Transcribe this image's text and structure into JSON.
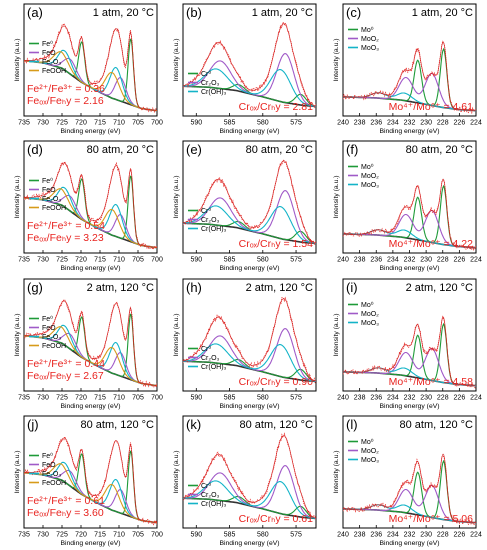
{
  "figure": {
    "panels": [
      {
        "label": "(a)",
        "element": "Fe",
        "condition": "1 atm, 20 °C",
        "ratios": [
          "Fe²⁺/Fe³⁺ = 0.36",
          "Feₒₓ/Feₕy = 2.16"
        ],
        "legend": [
          "Fe⁰",
          "FeO",
          "Fe₂O₃",
          "FeOOH"
        ]
      },
      {
        "label": "(b)",
        "element": "Cr",
        "condition": "1 atm, 20 °C",
        "ratios": [
          "Crₒₓ/Crₕy = 2.81"
        ],
        "legend": [
          "Cr⁰",
          "Cr₂O₃",
          "Cr(OH)₃"
        ]
      },
      {
        "label": "(c)",
        "element": "Mo",
        "condition": "1 atm, 20 °C",
        "ratios": [
          "Mo⁴⁺/Mo⁶⁺ = 4.61"
        ],
        "legend": [
          "Mo⁰",
          "MoO₂",
          "MoO₃"
        ]
      },
      {
        "label": "(d)",
        "element": "Fe",
        "condition": "80 atm, 20 °C",
        "ratios": [
          "Fe²⁺/Fe³⁺ = 0.54",
          "Feₒₓ/Feₕy = 3.23"
        ],
        "legend": [
          "Fe⁰",
          "FeO",
          "Fe₂O₃",
          "FeOOH"
        ]
      },
      {
        "label": "(e)",
        "element": "Cr",
        "condition": "80 atm, 20 °C",
        "ratios": [
          "Crₒₓ/Crₕy = 1.54"
        ],
        "legend": [
          "Cr⁰",
          "Cr₂O₃",
          "Cr(OH)₃"
        ]
      },
      {
        "label": "(f)",
        "element": "Mo",
        "condition": "80 atm, 20 °C",
        "ratios": [
          "Mo⁴⁺/Mo⁶⁺ = 4.22"
        ],
        "legend": [
          "Mo⁰",
          "MoO₂",
          "MoO₃"
        ]
      },
      {
        "label": "(g)",
        "element": "Fe",
        "condition": "2 atm, 120 °C",
        "ratios": [
          "Fe²⁺/Fe³⁺ = 0.44",
          "Feₒₓ/Feₕy = 2.67"
        ],
        "legend": [
          "Fe⁰",
          "FeO",
          "Fe₂O₃",
          "FeOOH"
        ]
      },
      {
        "label": "(h)",
        "element": "Cr",
        "condition": "2 atm, 120 °C",
        "ratios": [
          "Crₒₓ/Crₕy = 0.90"
        ],
        "legend": [
          "Cr⁰",
          "Cr₂O₃",
          "Cr(OH)₃"
        ]
      },
      {
        "label": "(i)",
        "element": "Mo",
        "condition": "2 atm, 120 °C",
        "ratios": [
          "Mo⁴⁺/Mo⁶⁺ = 4.58"
        ],
        "legend": [
          "Mo⁰",
          "MoO₂",
          "MoO₃"
        ]
      },
      {
        "label": "(j)",
        "element": "Fe",
        "condition": "80 atm, 120 °C",
        "ratios": [
          "Fe²⁺/Fe³⁺ = 0.61",
          "Feₒₓ/Feₕy = 3.60"
        ],
        "legend": [
          "Fe⁰",
          "FeO",
          "Fe₂O₃",
          "FeOOH"
        ]
      },
      {
        "label": "(k)",
        "element": "Cr",
        "condition": "80 atm, 120 °C",
        "ratios": [
          "Crₒₓ/Crₕy = 0.61"
        ],
        "legend": [
          "Cr⁰",
          "Cr₂O₃",
          "Cr(OH)₃"
        ]
      },
      {
        "label": "(l)",
        "element": "Mo",
        "condition": "80 atm, 120 °C",
        "ratios": [
          "Mo⁴⁺/Mo⁶⁺ = 5.06"
        ],
        "legend": [
          "Mo⁰",
          "MoO₂",
          "MoO₃"
        ]
      }
    ]
  },
  "colors": {
    "raw": "#e8231f",
    "fit": "#d21f1f",
    "background": "#333333",
    "c0": "#1e9a38",
    "c1": "#a05ac8",
    "c2": "#14b4c8",
    "c3": "#d79b1a",
    "ratio_text": "#e8231f"
  },
  "chart_data": [
    {
      "type": "line",
      "element": "Fe",
      "xlabel": "Binding energy (eV)",
      "ylabel": "Intensity (a.u.)",
      "xlim": [
        735,
        700
      ],
      "xticks": [
        735,
        730,
        725,
        720,
        715,
        710,
        705,
        700
      ],
      "reversed_x": true,
      "series": [
        {
          "name": "Fe⁰",
          "peaks": [
            706.9,
            719.8
          ]
        },
        {
          "name": "FeO",
          "peaks": [
            709.6,
            722.9
          ]
        },
        {
          "name": "Fe₂O₃",
          "peaks": [
            710.8,
            724.3
          ]
        },
        {
          "name": "FeOOH",
          "peaks": [
            711.8,
            725.3
          ]
        }
      ]
    },
    {
      "type": "line",
      "element": "Cr",
      "xlabel": "Binding energy (eV)",
      "ylabel": "Intensity (a.u.)",
      "xlim": [
        592,
        572
      ],
      "xticks": [
        590,
        585,
        580,
        575
      ],
      "reversed_x": true,
      "series": [
        {
          "name": "Cr⁰",
          "peaks": [
            574.3,
            583.6
          ]
        },
        {
          "name": "Cr₂O₃",
          "peaks": [
            576.6,
            586.4
          ]
        },
        {
          "name": "Cr(OH)₃",
          "peaks": [
            577.3,
            587.0
          ]
        }
      ]
    },
    {
      "type": "line",
      "element": "Mo",
      "xlabel": "Binding energy (eV)",
      "ylabel": "Intensity (a.u.)",
      "xlim": [
        240,
        224
      ],
      "xticks": [
        240,
        238,
        236,
        234,
        232,
        230,
        228,
        226,
        224
      ],
      "reversed_x": true,
      "series": [
        {
          "name": "Mo⁰",
          "peaks": [
            227.9,
            231.0
          ]
        },
        {
          "name": "MoO₂",
          "peaks": [
            229.3,
            232.4
          ]
        },
        {
          "name": "MoO₃",
          "peaks": [
            232.6,
            235.7
          ]
        }
      ]
    }
  ]
}
